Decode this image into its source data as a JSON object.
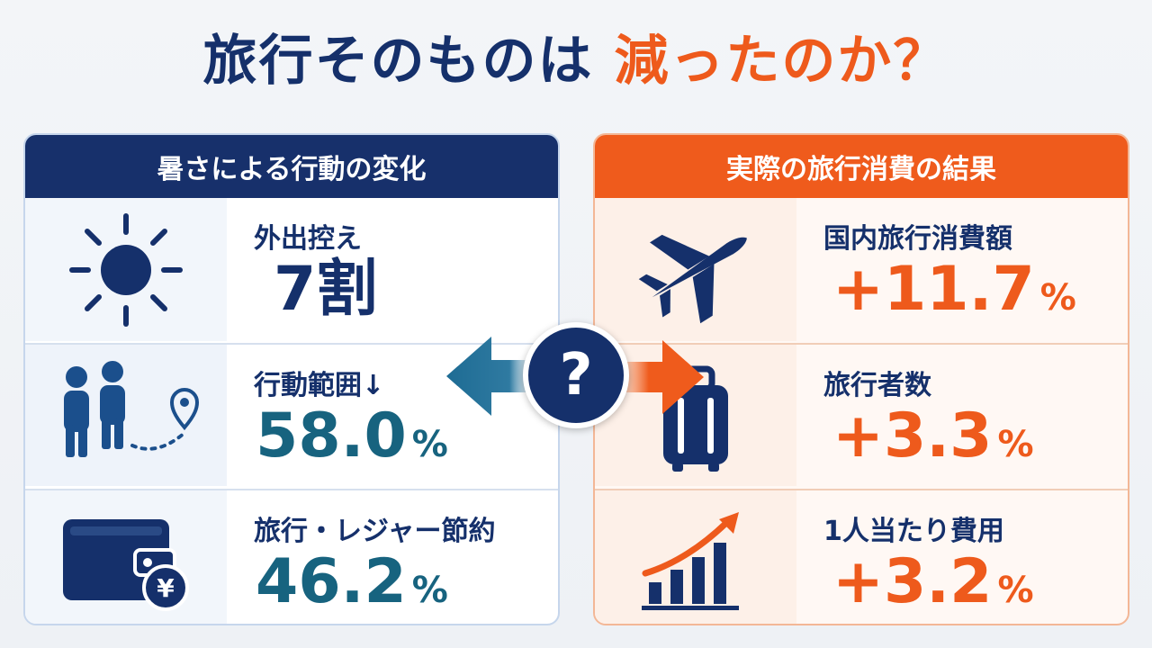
{
  "title": {
    "part1": "旅行そのものは",
    "part2": "減ったのか？"
  },
  "left_panel": {
    "header": "暑さによる行動の変化",
    "rows": [
      {
        "icon": "sun-icon",
        "label": "外出控え",
        "value": "7割",
        "unit": ""
      },
      {
        "icon": "people-location-icon",
        "label": "行動範囲↓",
        "value": "58.0",
        "unit": "%"
      },
      {
        "icon": "wallet-yen-icon",
        "label": "旅行・レジャー節約",
        "value": "46.2",
        "unit": "%"
      }
    ]
  },
  "right_panel": {
    "header": "実際の旅行消費の結果",
    "rows": [
      {
        "icon": "airplane-icon",
        "label": "国内旅行消費額",
        "value": "+11.7",
        "unit": "%"
      },
      {
        "icon": "suitcase-icon",
        "label": "旅行者数",
        "value": "+3.3",
        "unit": "%"
      },
      {
        "icon": "growth-chart-icon",
        "label": "1人当たり費用",
        "value": "+3.2",
        "unit": "%"
      }
    ]
  },
  "center_badge": {
    "symbol": "?",
    "icon": "question-icon"
  },
  "colors": {
    "navy": "#15306b",
    "orange": "#ee5a1c",
    "teal": "#17637f"
  }
}
